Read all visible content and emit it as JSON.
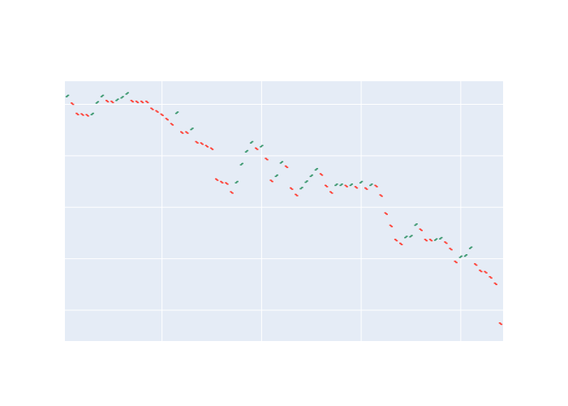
{
  "chart_data": {
    "type": "ohlc",
    "title": "",
    "xlabel": "",
    "ylabel": "",
    "xlim": [
      0.5,
      88.5
    ],
    "ylim": [
      -1.2,
      8.9
    ],
    "grid": true,
    "show_tick_labels": false,
    "background_color": "#E5ECF6",
    "grid_color": "#FFFFFF",
    "colors": {
      "increasing": "#3D9970",
      "decreasing": "#FF4136"
    },
    "candles": [
      {
        "x": 1,
        "open": 8.3,
        "close": 8.35,
        "direction": "increasing"
      },
      {
        "x": 2,
        "open": 8.05,
        "close": 8.0,
        "direction": "decreasing"
      },
      {
        "x": 3,
        "open": 7.65,
        "close": 7.6,
        "direction": "decreasing"
      },
      {
        "x": 4,
        "open": 7.63,
        "close": 7.58,
        "direction": "decreasing"
      },
      {
        "x": 5,
        "open": 7.6,
        "close": 7.55,
        "direction": "decreasing"
      },
      {
        "x": 6,
        "open": 7.6,
        "close": 7.65,
        "direction": "increasing"
      },
      {
        "x": 7,
        "open": 8.05,
        "close": 8.1,
        "direction": "increasing"
      },
      {
        "x": 8,
        "open": 8.3,
        "close": 8.35,
        "direction": "increasing"
      },
      {
        "x": 9,
        "open": 8.15,
        "close": 8.1,
        "direction": "decreasing"
      },
      {
        "x": 10,
        "open": 8.12,
        "close": 8.07,
        "direction": "decreasing"
      },
      {
        "x": 11,
        "open": 8.15,
        "close": 8.2,
        "direction": "increasing"
      },
      {
        "x": 12,
        "open": 8.25,
        "close": 8.3,
        "direction": "increasing"
      },
      {
        "x": 13,
        "open": 8.4,
        "close": 8.45,
        "direction": "increasing"
      },
      {
        "x": 14,
        "open": 8.15,
        "close": 8.1,
        "direction": "decreasing"
      },
      {
        "x": 15,
        "open": 8.12,
        "close": 8.07,
        "direction": "decreasing"
      },
      {
        "x": 16,
        "open": 8.12,
        "close": 8.07,
        "direction": "decreasing"
      },
      {
        "x": 17,
        "open": 8.12,
        "close": 8.07,
        "direction": "decreasing"
      },
      {
        "x": 18,
        "open": 7.85,
        "close": 7.8,
        "direction": "decreasing"
      },
      {
        "x": 19,
        "open": 7.75,
        "close": 7.7,
        "direction": "decreasing"
      },
      {
        "x": 20,
        "open": 7.62,
        "close": 7.57,
        "direction": "decreasing"
      },
      {
        "x": 21,
        "open": 7.45,
        "close": 7.4,
        "direction": "decreasing"
      },
      {
        "x": 22,
        "open": 7.25,
        "close": 7.2,
        "direction": "decreasing"
      },
      {
        "x": 23,
        "open": 7.65,
        "close": 7.7,
        "direction": "increasing"
      },
      {
        "x": 24,
        "open": 6.93,
        "close": 6.88,
        "direction": "decreasing"
      },
      {
        "x": 25,
        "open": 6.93,
        "close": 6.88,
        "direction": "decreasing"
      },
      {
        "x": 26,
        "open": 7.02,
        "close": 7.07,
        "direction": "increasing"
      },
      {
        "x": 27,
        "open": 6.55,
        "close": 6.5,
        "direction": "decreasing"
      },
      {
        "x": 28,
        "open": 6.5,
        "close": 6.45,
        "direction": "decreasing"
      },
      {
        "x": 29,
        "open": 6.4,
        "close": 6.35,
        "direction": "decreasing"
      },
      {
        "x": 30,
        "open": 6.3,
        "close": 6.25,
        "direction": "decreasing"
      },
      {
        "x": 31,
        "open": 5.1,
        "close": 5.05,
        "direction": "decreasing"
      },
      {
        "x": 32,
        "open": 5.0,
        "close": 4.95,
        "direction": "decreasing"
      },
      {
        "x": 33,
        "open": 4.95,
        "close": 4.9,
        "direction": "decreasing"
      },
      {
        "x": 34,
        "open": 4.6,
        "close": 4.55,
        "direction": "decreasing"
      },
      {
        "x": 35,
        "open": 4.95,
        "close": 5.0,
        "direction": "increasing"
      },
      {
        "x": 36,
        "open": 5.65,
        "close": 5.7,
        "direction": "increasing"
      },
      {
        "x": 37,
        "open": 6.15,
        "close": 6.2,
        "direction": "increasing"
      },
      {
        "x": 38,
        "open": 6.5,
        "close": 6.55,
        "direction": "increasing"
      },
      {
        "x": 39,
        "open": 6.3,
        "close": 6.25,
        "direction": "decreasing"
      },
      {
        "x": 40,
        "open": 6.35,
        "close": 6.4,
        "direction": "increasing"
      },
      {
        "x": 41,
        "open": 5.9,
        "close": 5.85,
        "direction": "decreasing"
      },
      {
        "x": 42,
        "open": 5.05,
        "close": 5.0,
        "direction": "decreasing"
      },
      {
        "x": 43,
        "open": 5.2,
        "close": 5.25,
        "direction": "increasing"
      },
      {
        "x": 44,
        "open": 5.72,
        "close": 5.77,
        "direction": "increasing"
      },
      {
        "x": 45,
        "open": 5.6,
        "close": 5.55,
        "direction": "decreasing"
      },
      {
        "x": 46,
        "open": 4.75,
        "close": 4.7,
        "direction": "decreasing"
      },
      {
        "x": 47,
        "open": 4.5,
        "close": 4.45,
        "direction": "decreasing"
      },
      {
        "x": 48,
        "open": 4.72,
        "close": 4.77,
        "direction": "increasing"
      },
      {
        "x": 49,
        "open": 4.97,
        "close": 5.02,
        "direction": "increasing"
      },
      {
        "x": 50,
        "open": 5.2,
        "close": 5.25,
        "direction": "increasing"
      },
      {
        "x": 51,
        "open": 5.45,
        "close": 5.5,
        "direction": "increasing"
      },
      {
        "x": 52,
        "open": 5.3,
        "close": 5.25,
        "direction": "decreasing"
      },
      {
        "x": 53,
        "open": 4.85,
        "close": 4.8,
        "direction": "decreasing"
      },
      {
        "x": 54,
        "open": 4.6,
        "close": 4.55,
        "direction": "decreasing"
      },
      {
        "x": 55,
        "open": 4.85,
        "close": 4.9,
        "direction": "increasing"
      },
      {
        "x": 56,
        "open": 4.85,
        "close": 4.9,
        "direction": "increasing"
      },
      {
        "x": 57,
        "open": 4.85,
        "close": 4.8,
        "direction": "decreasing"
      },
      {
        "x": 58,
        "open": 4.85,
        "close": 4.9,
        "direction": "increasing"
      },
      {
        "x": 59,
        "open": 4.8,
        "close": 4.75,
        "direction": "decreasing"
      },
      {
        "x": 60,
        "open": 4.95,
        "close": 5.0,
        "direction": "increasing"
      },
      {
        "x": 61,
        "open": 4.75,
        "close": 4.7,
        "direction": "decreasing"
      },
      {
        "x": 62,
        "open": 4.85,
        "close": 4.9,
        "direction": "increasing"
      },
      {
        "x": 63,
        "open": 4.85,
        "close": 4.8,
        "direction": "decreasing"
      },
      {
        "x": 64,
        "open": 4.48,
        "close": 4.43,
        "direction": "decreasing"
      },
      {
        "x": 65,
        "open": 3.78,
        "close": 3.73,
        "direction": "decreasing"
      },
      {
        "x": 66,
        "open": 3.3,
        "close": 3.25,
        "direction": "decreasing"
      },
      {
        "x": 67,
        "open": 2.75,
        "close": 2.7,
        "direction": "decreasing"
      },
      {
        "x": 68,
        "open": 2.6,
        "close": 2.55,
        "direction": "decreasing"
      },
      {
        "x": 69,
        "open": 2.82,
        "close": 2.87,
        "direction": "increasing"
      },
      {
        "x": 70,
        "open": 2.85,
        "close": 2.9,
        "direction": "increasing"
      },
      {
        "x": 71,
        "open": 3.3,
        "close": 3.35,
        "direction": "increasing"
      },
      {
        "x": 72,
        "open": 3.15,
        "close": 3.1,
        "direction": "decreasing"
      },
      {
        "x": 73,
        "open": 2.75,
        "close": 2.7,
        "direction": "decreasing"
      },
      {
        "x": 74,
        "open": 2.75,
        "close": 2.7,
        "direction": "decreasing"
      },
      {
        "x": 75,
        "open": 2.72,
        "close": 2.77,
        "direction": "increasing"
      },
      {
        "x": 76,
        "open": 2.77,
        "close": 2.82,
        "direction": "increasing"
      },
      {
        "x": 77,
        "open": 2.65,
        "close": 2.6,
        "direction": "decreasing"
      },
      {
        "x": 78,
        "open": 2.4,
        "close": 2.35,
        "direction": "decreasing"
      },
      {
        "x": 79,
        "open": 1.9,
        "close": 1.85,
        "direction": "decreasing"
      },
      {
        "x": 80,
        "open": 2.05,
        "close": 2.1,
        "direction": "increasing"
      },
      {
        "x": 81,
        "open": 2.1,
        "close": 2.15,
        "direction": "increasing"
      },
      {
        "x": 82,
        "open": 2.4,
        "close": 2.45,
        "direction": "increasing"
      },
      {
        "x": 83,
        "open": 1.8,
        "close": 1.75,
        "direction": "decreasing"
      },
      {
        "x": 84,
        "open": 1.55,
        "close": 1.5,
        "direction": "decreasing"
      },
      {
        "x": 85,
        "open": 1.5,
        "close": 1.45,
        "direction": "decreasing"
      },
      {
        "x": 86,
        "open": 1.3,
        "close": 1.25,
        "direction": "decreasing"
      },
      {
        "x": 87,
        "open": 1.05,
        "close": 1.0,
        "direction": "decreasing"
      },
      {
        "x": 88,
        "open": -0.5,
        "close": -0.55,
        "direction": "decreasing"
      }
    ]
  }
}
